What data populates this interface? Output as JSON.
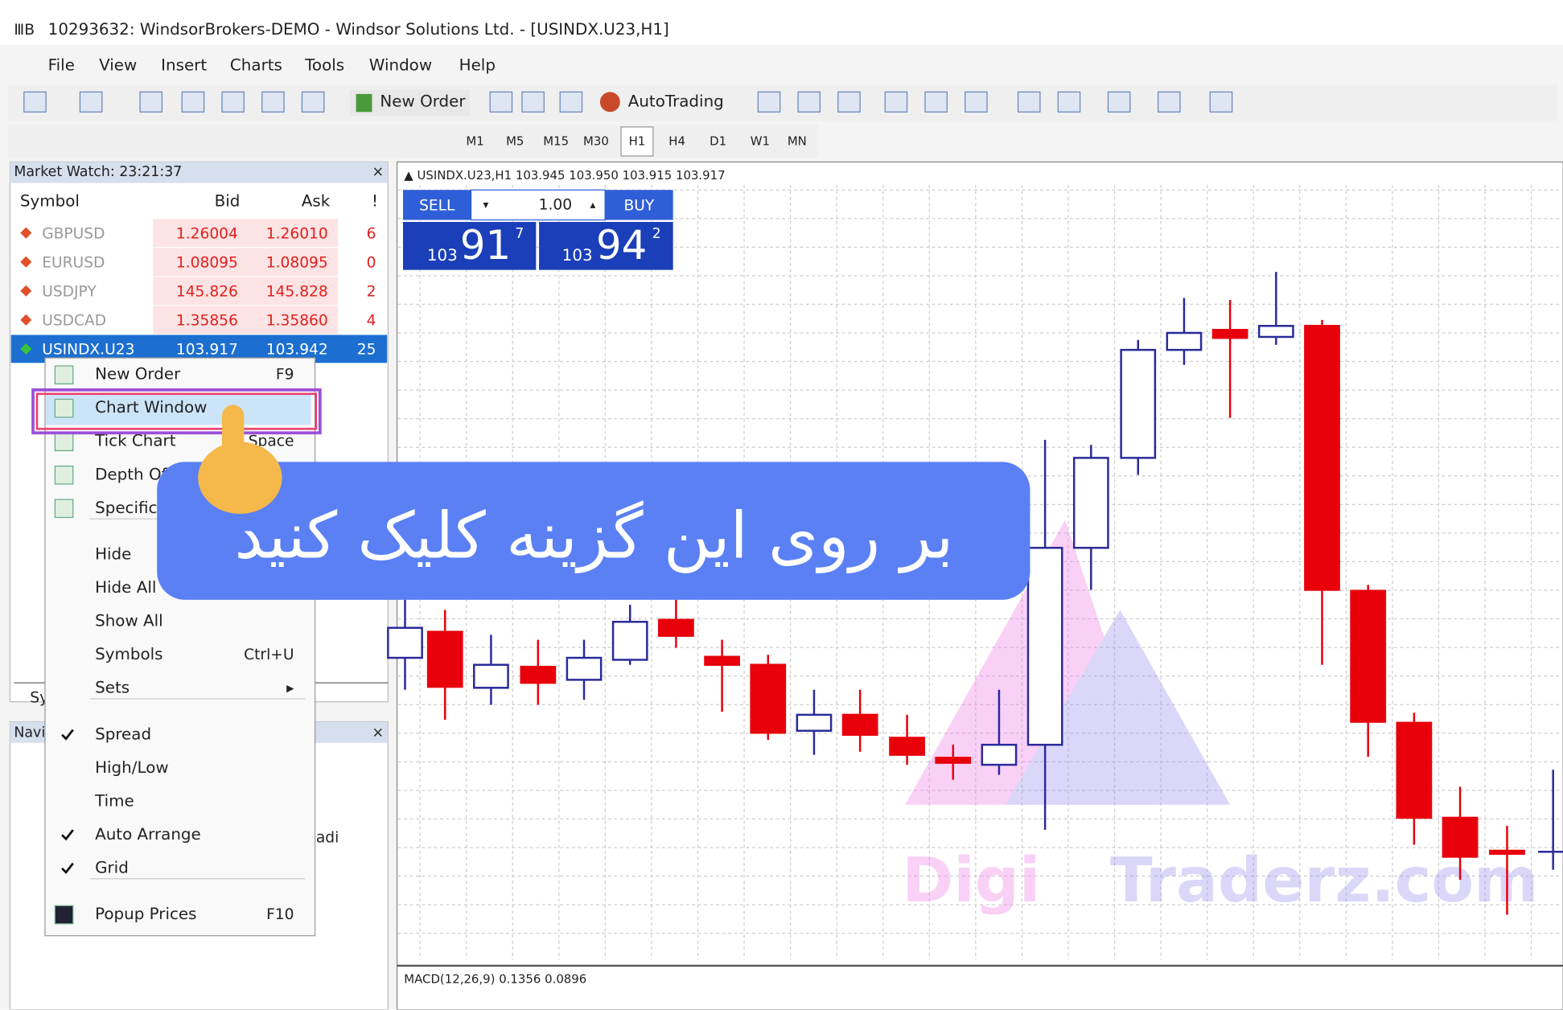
{
  "window": {
    "title": "10293632: WindsorBrokers-DEMO - Windsor Solutions Ltd. - [USINDX.U23,H1]"
  },
  "menu": [
    "File",
    "View",
    "Insert",
    "Charts",
    "Tools",
    "Window",
    "Help"
  ],
  "toolbar": {
    "new_order": "New Order",
    "autotrading": "AutoTrading"
  },
  "timeframes": [
    "M1",
    "M5",
    "M15",
    "M30",
    "H1",
    "H4",
    "D1",
    "W1",
    "MN"
  ],
  "market_watch": {
    "title": "Market Watch: 23:21:37",
    "columns": [
      "Symbol",
      "Bid",
      "Ask",
      "!"
    ],
    "rows": [
      [
        "GBPUSD",
        "1.26004",
        "1.26010",
        "6"
      ],
      [
        "EURUSD",
        "1.08095",
        "1.08095",
        "0"
      ],
      [
        "USDJPY",
        "145.826",
        "145.828",
        "2"
      ],
      [
        "USDCAD",
        "1.35856",
        "1.35860",
        "4"
      ],
      [
        "USINDX.U23",
        "103.917",
        "103.942",
        "25"
      ]
    ],
    "tab": "Sy"
  },
  "navigator": {
    "title": "Navi",
    "fragment": "adi"
  },
  "chart": {
    "header": "USINDX.U23,H1  103.945 103.950 103.915 103.917",
    "sell": "SELL",
    "buy": "BUY",
    "lot": "1.00",
    "sell_price": [
      "103",
      "91",
      "7"
    ],
    "buy_price": [
      "103",
      "94",
      "2"
    ],
    "macd": "MACD(12,26,9) 0.1356 0.0896",
    "watermark": [
      "Digi",
      "Traderz.com"
    ]
  },
  "context_menu": {
    "groups": [
      [
        {
          "label": "New Order",
          "shortcut": "F9"
        },
        {
          "label": "Chart Window"
        },
        {
          "label": "Tick Chart",
          "shortcut": "Space"
        },
        {
          "label": "Depth Of"
        },
        {
          "label": "Specific"
        }
      ],
      [
        {
          "label": "Hide"
        },
        {
          "label": "Hide All"
        },
        {
          "label": "Show All"
        },
        {
          "label": "Symbols",
          "shortcut": "Ctrl+U"
        },
        {
          "label": "Sets",
          "shortcut": "▸"
        }
      ],
      [
        {
          "label": "Spread",
          "checked": true
        },
        {
          "label": "High/Low"
        },
        {
          "label": "Time"
        },
        {
          "label": "Auto Arrange",
          "checked": true
        },
        {
          "label": "Grid",
          "checked": true
        }
      ],
      [
        {
          "label": "Popup Prices",
          "shortcut": "F10"
        }
      ]
    ]
  },
  "overlay": {
    "text": "بر روی این گزینه کلیک کنید"
  }
}
